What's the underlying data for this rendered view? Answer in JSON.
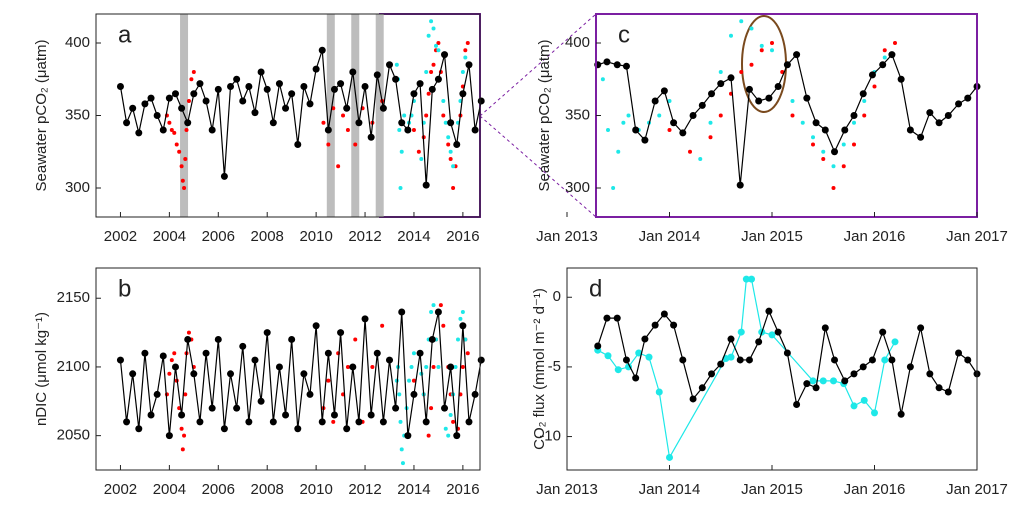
{
  "chart_data": [
    {
      "type": "line",
      "label": "a",
      "ylabel": "Seawater pCO₂ (μatm)",
      "xlim": [
        2001,
        2016.7
      ],
      "xticks": [
        2002,
        2004,
        2006,
        2008,
        2010,
        2012,
        2014,
        2016
      ],
      "ylim": [
        280,
        420
      ],
      "yticks": [
        300,
        350,
        400
      ],
      "shaded_x": [
        2004.6,
        2010.6,
        2011.6,
        2012.6
      ],
      "shaded_color": "#bdbdbd",
      "series": [
        {
          "color": "#ff0000",
          "line": false,
          "x": [
            2003.9,
            2004.0,
            2004.1,
            2004.2,
            2004.3,
            2004.4,
            2004.5,
            2004.55,
            2004.6,
            2004.65,
            2004.7,
            2004.8,
            2004.9,
            2005.0,
            2010.3,
            2010.5,
            2010.7,
            2010.9,
            2011.1,
            2011.3,
            2011.6,
            2011.9,
            2012.3,
            2012.7,
            2014.0,
            2014.2,
            2014.4,
            2014.5,
            2014.6,
            2014.7,
            2014.8,
            2014.9,
            2015.0,
            2015.1,
            2015.2,
            2015.4,
            2015.5,
            2015.6,
            2015.7,
            2015.8,
            2015.9,
            2016.0,
            2016.1,
            2016.2
          ],
          "values": [
            350,
            345,
            340,
            338,
            330,
            325,
            315,
            305,
            300,
            320,
            340,
            360,
            375,
            380,
            345,
            330,
            355,
            315,
            350,
            340,
            330,
            355,
            345,
            360,
            340,
            325,
            335,
            350,
            365,
            380,
            385,
            395,
            400,
            380,
            350,
            330,
            320,
            300,
            315,
            330,
            350,
            370,
            395,
            400
          ]
        },
        {
          "color": "#1ee8e8",
          "line": false,
          "x": [
            2013.3,
            2013.35,
            2013.4,
            2013.45,
            2013.5,
            2013.55,
            2013.6,
            2013.7,
            2013.8,
            2013.9,
            2014.0,
            2014.3,
            2014.4,
            2014.5,
            2014.6,
            2014.7,
            2014.8,
            2014.9,
            2015.0,
            2015.2,
            2015.3,
            2015.4,
            2015.5,
            2015.6,
            2015.7,
            2015.8,
            2015.9,
            2016.0,
            2016.1
          ],
          "values": [
            385,
            375,
            340,
            300,
            325,
            345,
            350,
            340,
            345,
            350,
            360,
            320,
            345,
            380,
            405,
            415,
            410,
            398,
            395,
            360,
            345,
            335,
            325,
            315,
            330,
            345,
            360,
            380,
            390
          ]
        },
        {
          "color": "#000000",
          "line": true,
          "x": [
            2002.0,
            2002.25,
            2002.5,
            2002.75,
            2003.0,
            2003.25,
            2003.5,
            2003.75,
            2004.0,
            2004.25,
            2004.5,
            2004.75,
            2005.0,
            2005.25,
            2005.5,
            2005.75,
            2006.0,
            2006.25,
            2006.5,
            2006.75,
            2007.0,
            2007.25,
            2007.5,
            2007.75,
            2008.0,
            2008.25,
            2008.5,
            2008.75,
            2009.0,
            2009.25,
            2009.5,
            2009.75,
            2010.0,
            2010.25,
            2010.5,
            2010.75,
            2011.0,
            2011.25,
            2011.5,
            2011.75,
            2012.0,
            2012.25,
            2012.5,
            2012.75,
            2013.0,
            2013.25,
            2013.5,
            2013.75,
            2014.0,
            2014.25,
            2014.5,
            2014.75,
            2015.0,
            2015.25,
            2015.5,
            2015.75,
            2016.0,
            2016.25,
            2016.5,
            2016.75
          ],
          "values": [
            370,
            345,
            355,
            338,
            358,
            362,
            350,
            340,
            362,
            365,
            355,
            345,
            365,
            372,
            360,
            340,
            368,
            308,
            370,
            375,
            360,
            370,
            352,
            380,
            368,
            345,
            372,
            355,
            365,
            330,
            370,
            358,
            382,
            395,
            340,
            368,
            372,
            355,
            380,
            345,
            370,
            335,
            378,
            355,
            385,
            375,
            345,
            340,
            365,
            372,
            302,
            368,
            375,
            392,
            345,
            330,
            365,
            385,
            340,
            360
          ]
        }
      ]
    },
    {
      "type": "line",
      "label": "b",
      "ylabel": "nDIC (μmol kg⁻¹)",
      "xlim": [
        2001,
        2016.7
      ],
      "xticks": [
        2002,
        2004,
        2006,
        2008,
        2010,
        2012,
        2014,
        2016
      ],
      "ylim": [
        2025,
        2172
      ],
      "yticks": [
        2050,
        2100,
        2150
      ],
      "series": [
        {
          "color": "#ff0000",
          "line": false,
          "x": [
            2003.9,
            2004.0,
            2004.1,
            2004.2,
            2004.3,
            2004.4,
            2004.5,
            2004.55,
            2004.6,
            2004.65,
            2004.7,
            2004.8,
            2004.9,
            2005.0,
            2010.3,
            2010.5,
            2010.7,
            2010.9,
            2011.1,
            2011.3,
            2011.6,
            2011.9,
            2012.3,
            2012.7,
            2014.0,
            2014.2,
            2014.4,
            2014.5,
            2014.6,
            2014.7,
            2014.8,
            2014.9,
            2015.0,
            2015.1,
            2015.2,
            2015.4,
            2015.5,
            2015.6,
            2015.7,
            2015.8,
            2015.9,
            2016.0,
            2016.1,
            2016.2
          ],
          "values": [
            2080,
            2095,
            2105,
            2110,
            2090,
            2070,
            2055,
            2040,
            2050,
            2080,
            2110,
            2125,
            2120,
            2100,
            2070,
            2090,
            2060,
            2110,
            2080,
            2100,
            2120,
            2060,
            2100,
            2130,
            2090,
            2110,
            2080,
            2060,
            2050,
            2070,
            2100,
            2120,
            2140,
            2145,
            2130,
            2100,
            2080,
            2060,
            2050,
            2055,
            2080,
            2100,
            2120,
            2110
          ]
        },
        {
          "color": "#1ee8e8",
          "line": false,
          "x": [
            2013.3,
            2013.35,
            2013.4,
            2013.45,
            2013.5,
            2013.55,
            2013.6,
            2013.7,
            2013.8,
            2013.9,
            2014.0,
            2014.3,
            2014.4,
            2014.5,
            2014.6,
            2014.7,
            2014.8,
            2014.9,
            2015.0,
            2015.2,
            2015.3,
            2015.4,
            2015.5,
            2015.6,
            2015.7,
            2015.8,
            2015.9,
            2016.0,
            2016.1
          ],
          "values": [
            2090,
            2100,
            2080,
            2060,
            2040,
            2030,
            2050,
            2070,
            2090,
            2100,
            2110,
            2095,
            2080,
            2100,
            2120,
            2140,
            2145,
            2120,
            2100,
            2070,
            2055,
            2050,
            2065,
            2080,
            2100,
            2120,
            2135,
            2140,
            2120
          ]
        },
        {
          "color": "#000000",
          "line": true,
          "x": [
            2002.0,
            2002.25,
            2002.5,
            2002.75,
            2003.0,
            2003.25,
            2003.5,
            2003.75,
            2004.0,
            2004.25,
            2004.5,
            2004.75,
            2005.0,
            2005.25,
            2005.5,
            2005.75,
            2006.0,
            2006.25,
            2006.5,
            2006.75,
            2007.0,
            2007.25,
            2007.5,
            2007.75,
            2008.0,
            2008.25,
            2008.5,
            2008.75,
            2009.0,
            2009.25,
            2009.5,
            2009.75,
            2010.0,
            2010.25,
            2010.5,
            2010.75,
            2011.0,
            2011.25,
            2011.5,
            2011.75,
            2012.0,
            2012.25,
            2012.5,
            2012.75,
            2013.0,
            2013.25,
            2013.5,
            2013.75,
            2014.0,
            2014.25,
            2014.5,
            2014.75,
            2015.0,
            2015.25,
            2015.5,
            2015.75,
            2016.0,
            2016.25,
            2016.5,
            2016.75
          ],
          "values": [
            2105,
            2060,
            2095,
            2055,
            2110,
            2065,
            2080,
            2108,
            2050,
            2100,
            2065,
            2120,
            2095,
            2060,
            2110,
            2070,
            2120,
            2055,
            2095,
            2070,
            2115,
            2060,
            2105,
            2075,
            2125,
            2060,
            2100,
            2065,
            2120,
            2055,
            2095,
            2080,
            2130,
            2060,
            2110,
            2065,
            2125,
            2055,
            2100,
            2060,
            2135,
            2065,
            2110,
            2060,
            2105,
            2070,
            2140,
            2050,
            2080,
            2110,
            2060,
            2120,
            2140,
            2070,
            2100,
            2050,
            2130,
            2060,
            2080,
            2105
          ]
        }
      ]
    },
    {
      "type": "line",
      "label": "c",
      "ylabel": "Seawater pCO₂ (μatm)",
      "frame_color": "#7b1fa2",
      "xlim": [
        2013,
        2017
      ],
      "xticks": [
        {
          "value": 2013,
          "label": "Jan 2013"
        },
        {
          "value": 2014,
          "label": "Jan 2014"
        },
        {
          "value": 2015,
          "label": "Jan 2015"
        },
        {
          "value": 2016,
          "label": "Jan 2016"
        },
        {
          "value": 2017,
          "label": "Jan 2017"
        }
      ],
      "ylim": [
        280,
        420
      ],
      "yticks": [
        300,
        350,
        400
      ],
      "series": [
        {
          "color": "#ff0000",
          "line": false,
          "x": [
            2014.0,
            2014.2,
            2014.4,
            2014.5,
            2014.6,
            2014.7,
            2014.8,
            2014.9,
            2015.0,
            2015.1,
            2015.2,
            2015.4,
            2015.5,
            2015.6,
            2015.7,
            2015.8,
            2015.9,
            2016.0,
            2016.1,
            2016.2
          ],
          "values": [
            340,
            325,
            335,
            350,
            365,
            380,
            385,
            395,
            400,
            380,
            350,
            330,
            320,
            300,
            315,
            330,
            350,
            370,
            395,
            400
          ]
        },
        {
          "color": "#1ee8e8",
          "line": false,
          "x": [
            2013.3,
            2013.35,
            2013.4,
            2013.45,
            2013.5,
            2013.55,
            2013.6,
            2013.7,
            2013.8,
            2013.9,
            2014.0,
            2014.3,
            2014.4,
            2014.5,
            2014.6,
            2014.7,
            2014.8,
            2014.9,
            2015.0,
            2015.2,
            2015.3,
            2015.4,
            2015.5,
            2015.6,
            2015.7,
            2015.8,
            2015.9,
            2016.0,
            2016.1
          ],
          "values": [
            385,
            375,
            340,
            300,
            325,
            345,
            350,
            340,
            345,
            350,
            360,
            320,
            345,
            380,
            405,
            415,
            410,
            398,
            395,
            360,
            345,
            335,
            325,
            315,
            330,
            345,
            360,
            380,
            390
          ]
        },
        {
          "color": "#000000",
          "line": true,
          "x": [
            2013.3,
            2013.39,
            2013.49,
            2013.58,
            2013.67,
            2013.76,
            2013.86,
            2013.95,
            2014.04,
            2014.13,
            2014.23,
            2014.32,
            2014.41,
            2014.5,
            2014.6,
            2014.69,
            2014.78,
            2014.87,
            2014.97,
            2015.06,
            2015.15,
            2015.24,
            2015.34,
            2015.43,
            2015.52,
            2015.61,
            2015.71,
            2015.8,
            2015.89,
            2015.98,
            2016.08,
            2016.17,
            2016.26,
            2016.35,
            2016.45,
            2016.54,
            2016.63,
            2016.72,
            2016.82,
            2016.91,
            2017.0
          ],
          "values": [
            385,
            387,
            385,
            384,
            340,
            333,
            360,
            367,
            345,
            338,
            350,
            357,
            365,
            372,
            376,
            302,
            368,
            360,
            362,
            370,
            385,
            392,
            362,
            345,
            340,
            325,
            340,
            350,
            365,
            378,
            385,
            392,
            375,
            340,
            335,
            352,
            345,
            350,
            358,
            362,
            370
          ]
        }
      ]
    },
    {
      "type": "line",
      "label": "d",
      "ylabel": "CO₂ flux (mmol m⁻² d⁻¹)",
      "xlim": [
        2013,
        2017
      ],
      "xticks": [
        {
          "value": 2013,
          "label": "Jan 2013"
        },
        {
          "value": 2014,
          "label": "Jan 2014"
        },
        {
          "value": 2015,
          "label": "Jan 2015"
        },
        {
          "value": 2016,
          "label": "Jan 2016"
        },
        {
          "value": 2017,
          "label": "Jan 2017"
        }
      ],
      "ylim": [
        -12.4,
        2.1
      ],
      "yticks": [
        -10,
        -5,
        0
      ],
      "series": [
        {
          "color": "#1ee8e8",
          "line": true,
          "x": [
            2013.3,
            2013.4,
            2013.5,
            2013.6,
            2013.7,
            2013.8,
            2013.9,
            2014.0,
            2014.55,
            2014.6,
            2014.7,
            2014.75,
            2014.8,
            2014.9,
            2015.0,
            2015.4,
            2015.5,
            2015.6,
            2015.7,
            2015.8,
            2015.9,
            2016.0,
            2016.1,
            2016.2
          ],
          "values": [
            -3.8,
            -4.2,
            -5.2,
            -5.0,
            -4.0,
            -4.3,
            -6.8,
            -11.5,
            -4.4,
            -4.3,
            -2.5,
            1.3,
            1.3,
            -2.5,
            -2.7,
            -6,
            -6,
            -6,
            -6.2,
            -7.8,
            -7.4,
            -8.3,
            -4.5,
            -3.2
          ]
        },
        {
          "color": "#000000",
          "line": true,
          "x": [
            2013.3,
            2013.39,
            2013.49,
            2013.58,
            2013.67,
            2013.76,
            2013.86,
            2013.95,
            2014.04,
            2014.13,
            2014.23,
            2014.32,
            2014.41,
            2014.5,
            2014.6,
            2014.69,
            2014.78,
            2014.87,
            2014.97,
            2015.06,
            2015.15,
            2015.24,
            2015.34,
            2015.43,
            2015.52,
            2015.61,
            2015.71,
            2015.8,
            2015.89,
            2015.98,
            2016.08,
            2016.17,
            2016.26,
            2016.35,
            2016.45,
            2016.54,
            2016.63,
            2016.72,
            2016.82,
            2016.91,
            2017.0
          ],
          "values": [
            -3.5,
            -1.5,
            -1.5,
            -4.5,
            -5.8,
            -3,
            -2,
            -1.2,
            -2,
            -4.5,
            -7.3,
            -6.5,
            -5.5,
            -4.8,
            -3,
            -4.5,
            -4.5,
            -3.2,
            -1,
            -2.5,
            -4,
            -7.7,
            -6.2,
            -6.5,
            -2.2,
            -4.5,
            -6,
            -5.5,
            -5,
            -4.5,
            -2.5,
            -4.5,
            -8.4,
            -5,
            -2.2,
            -5.5,
            -6.5,
            -6.8,
            -4,
            -4.5,
            -5.5
          ]
        }
      ]
    }
  ]
}
